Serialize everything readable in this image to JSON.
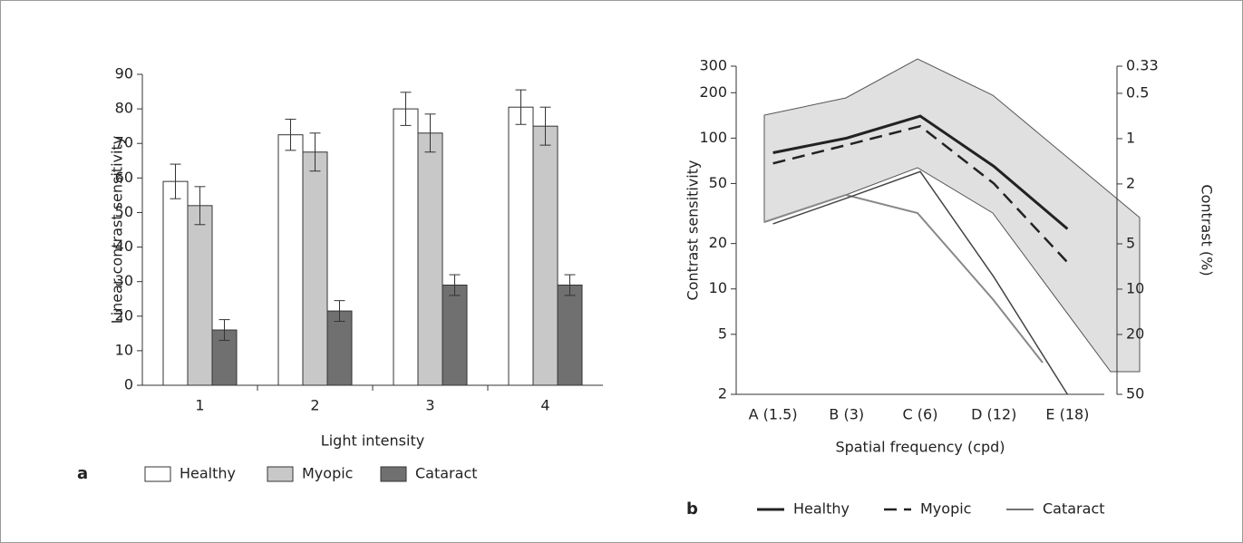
{
  "chart_data": [
    {
      "type": "bar",
      "panel_label": "a",
      "y_label": "Linear contrast sensitivity",
      "x_label": "Light intensity",
      "categories": [
        "1",
        "2",
        "3",
        "4"
      ],
      "series": [
        {
          "name": "Healthy",
          "color": "#ffffff",
          "values": [
            59,
            72.5,
            80,
            80.5
          ],
          "errors": [
            5,
            4.5,
            4.8,
            5
          ]
        },
        {
          "name": "Myopic",
          "color": "#c8c8c8",
          "values": [
            52,
            67.5,
            73,
            75
          ],
          "errors": [
            5.5,
            5.5,
            5.5,
            5.5
          ]
        },
        {
          "name": "Cataract",
          "color": "#707070",
          "values": [
            16,
            21.5,
            29,
            29
          ],
          "errors": [
            3,
            3,
            3,
            3
          ]
        }
      ],
      "ylim": [
        0,
        90
      ],
      "yticks": [
        0,
        10,
        20,
        30,
        40,
        50,
        60,
        70,
        80,
        90
      ]
    },
    {
      "type": "line",
      "panel_label": "b",
      "y_label": "Contrast sensitivity",
      "y2_label": "Contrast (%)",
      "x_label": "Spatial frequency (cpd)",
      "categories": [
        "A (1.5)",
        "B (3)",
        "C (6)",
        "D (12)",
        "E (18)"
      ],
      "series": [
        {
          "name": "Healthy",
          "color": "#222222",
          "style": "thick",
          "values": [
            80,
            100,
            140,
            65,
            25
          ]
        },
        {
          "name": "Myopic",
          "color": "#222222",
          "style": "dashed",
          "values": [
            68,
            90,
            120,
            50,
            15
          ]
        },
        {
          "name": "Cataract",
          "color": "#444444",
          "style": "thin",
          "values": [
            27,
            40,
            60,
            12,
            2
          ]
        }
      ],
      "log": true,
      "ylim": [
        2,
        300
      ],
      "yticks": [
        2,
        5,
        10,
        20,
        50,
        100,
        200,
        300
      ],
      "y2lim": [
        50,
        0.33
      ],
      "y2ticks": [
        0.33,
        0.5,
        1,
        2,
        5,
        10,
        20,
        50
      ]
    }
  ]
}
